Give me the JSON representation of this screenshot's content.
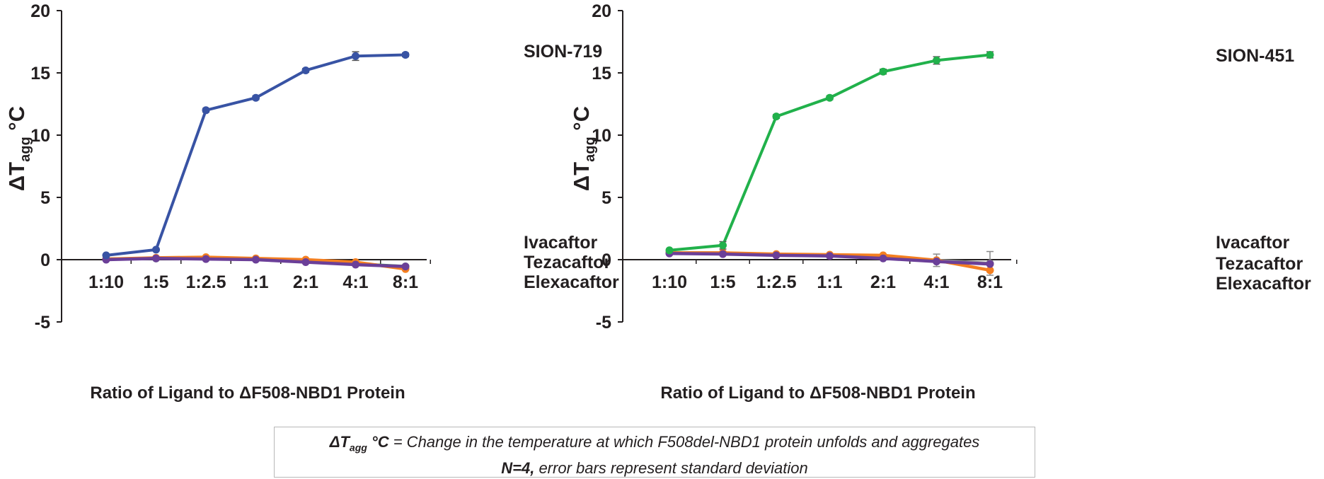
{
  "chart_data": [
    {
      "type": "line",
      "ylabel": "ΔT",
      "ylabel_sub": "agg",
      "ylabel_unit": " °C",
      "xlabel": "Ratio of Ligand to ΔF508-NBD1 Protein",
      "categories": [
        "1:10",
        "1:5",
        "1:2.5",
        "1:1",
        "2:1",
        "4:1",
        "8:1"
      ],
      "ylim": [
        -5,
        20
      ],
      "yticks": [
        -5,
        0,
        5,
        10,
        15,
        20
      ],
      "grid": false,
      "series": [
        {
          "name": "SION-719",
          "color": "#3853a4",
          "values": [
            0.35,
            0.8,
            12.0,
            13.0,
            15.2,
            16.35,
            16.45
          ],
          "errors": [
            0.1,
            0.1,
            0.15,
            0.15,
            0.15,
            0.35,
            0.15
          ]
        },
        {
          "name": "Ivacaftor",
          "color": "#3a9e4a",
          "values": [
            0.05,
            0.1,
            0.1,
            0.05,
            -0.15,
            -0.35,
            -0.55
          ],
          "errors": [
            0,
            0,
            0,
            0,
            0,
            0,
            0
          ]
        },
        {
          "name": "Tezacaftor",
          "color": "#f47f20",
          "values": [
            0.05,
            0.15,
            0.2,
            0.1,
            0.0,
            -0.2,
            -0.75
          ],
          "errors": [
            0,
            0,
            0,
            0,
            0,
            0,
            0
          ]
        },
        {
          "name": "Elexacaftor",
          "color": "#6b3f98",
          "values": [
            0.0,
            0.1,
            0.05,
            0.0,
            -0.2,
            -0.4,
            -0.55
          ],
          "errors": [
            0,
            0,
            0,
            0,
            0,
            0,
            0
          ]
        }
      ]
    },
    {
      "type": "line",
      "ylabel": "ΔT",
      "ylabel_sub": "agg",
      "ylabel_unit": " °C",
      "xlabel": "Ratio of Ligand to ΔF508-NBD1 Protein",
      "categories": [
        "1:10",
        "1:5",
        "1:2.5",
        "1:1",
        "2:1",
        "4:1",
        "8:1"
      ],
      "ylim": [
        -5,
        20
      ],
      "yticks": [
        -5,
        0,
        5,
        10,
        15,
        20
      ],
      "grid": false,
      "series": [
        {
          "name": "SION-451",
          "color": "#21b14b",
          "values": [
            0.75,
            1.15,
            11.5,
            13.0,
            15.1,
            16.0,
            16.45
          ],
          "errors": [
            0.1,
            0.3,
            0.15,
            0.15,
            0.2,
            0.3,
            0.25
          ]
        },
        {
          "name": "Ivacaftor",
          "color": "#8a8a8a",
          "values": [
            0.55,
            0.55,
            0.4,
            0.35,
            0.2,
            -0.05,
            -0.3
          ],
          "errors": [
            0,
            0,
            0,
            0,
            0,
            0.5,
            0.95
          ]
        },
        {
          "name": "Tezacaftor",
          "color": "#f47f20",
          "values": [
            0.55,
            0.55,
            0.45,
            0.4,
            0.35,
            -0.05,
            -0.85
          ],
          "errors": [
            0,
            0,
            0,
            0,
            0,
            0,
            0
          ]
        },
        {
          "name": "Elexacaftor",
          "color": "#6b3f98",
          "values": [
            0.5,
            0.45,
            0.35,
            0.3,
            0.1,
            -0.15,
            -0.35
          ],
          "errors": [
            0,
            0,
            0,
            0,
            0,
            0,
            0
          ]
        }
      ]
    }
  ],
  "footnote": {
    "line1_symbol": "ΔT",
    "line1_sub": "agg",
    "line1_unit": " °C",
    "line1_text": " = Change in the temperature at which F508del-NBD1 protein unfolds and aggregates",
    "line2_bold": "N=4,",
    "line2_text": " error bars represent standard deviation"
  }
}
